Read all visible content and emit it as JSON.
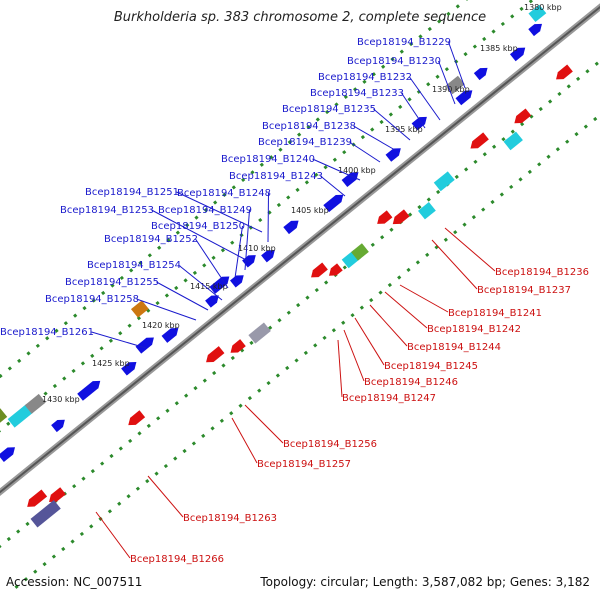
{
  "title": "Burkholderia sp. 383 chromosome 2, complete sequence",
  "accession": "Accession: NC_007511",
  "topology": "Topology: circular; Length: 3,587,082 bp; Genes: 3,182",
  "colors": {
    "forward_gene": "#1010e0",
    "reverse_gene": "#e01010",
    "backbone": "#777777",
    "grid_dots": "#2c8a2c",
    "label_top": "#1a1acc",
    "label_bot": "#cc1111"
  },
  "kbp_ticks": [
    "1380 kbp",
    "1385 kbp",
    "1390 kbp",
    "1395 kbp",
    "1400 kbp",
    "1405 kbp",
    "1410 kbp",
    "1415 kbp",
    "1420 kbp",
    "1425 kbp",
    "1430 kbp"
  ],
  "top_labels": [
    "Bcep18194_B1229",
    "Bcep18194_B1230",
    "Bcep18194_B1232",
    "Bcep18194_B1233",
    "Bcep18194_B1235",
    "Bcep18194_B1238",
    "Bcep18194_B1239",
    "Bcep18194_B1240",
    "Bcep18194_B1243",
    "Bcep18194_B1251",
    "Bcep18194_B1248",
    "Bcep18194_B1253",
    "Bcep18194_B1249",
    "Bcep18194_B1250",
    "Bcep18194_B1252",
    "Bcep18194_B1254",
    "Bcep18194_B1255",
    "Bcep18194_B1258",
    "Bcep18194_B1261"
  ],
  "bottom_labels": [
    "Bcep18194_B1236",
    "Bcep18194_B1237",
    "Bcep18194_B1241",
    "Bcep18194_B1242",
    "Bcep18194_B1244",
    "Bcep18194_B1245",
    "Bcep18194_B1246",
    "Bcep18194_B1247",
    "Bcep18194_B1256",
    "Bcep18194_B1257",
    "Bcep18194_B1263",
    "Bcep18194_B1266"
  ]
}
